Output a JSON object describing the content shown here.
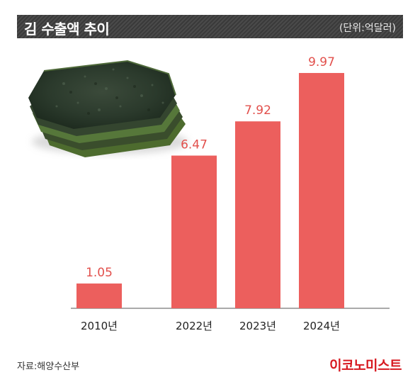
{
  "header": {
    "title": "김 수출액 추이",
    "unit": "(단위:억달러)"
  },
  "chart_data": {
    "type": "bar",
    "categories": [
      "2010년",
      "2022년",
      "2023년",
      "2024년"
    ],
    "values": [
      1.05,
      6.47,
      7.92,
      9.97
    ],
    "value_labels": [
      "1.05",
      "6.47",
      "7.92",
      "9.97"
    ],
    "title": "김 수출액 추이",
    "xlabel": "",
    "ylabel": "",
    "unit": "억달러",
    "ylim": [
      0,
      10.9
    ],
    "grid": false,
    "bar_color": "#ec5f5d",
    "label_color": "#e2504c"
  },
  "footer": {
    "source": "자료:해양수산부",
    "logo": "이코노미스트"
  },
  "illustration": {
    "icon": "seaweed-laver-sheets-illustration"
  }
}
